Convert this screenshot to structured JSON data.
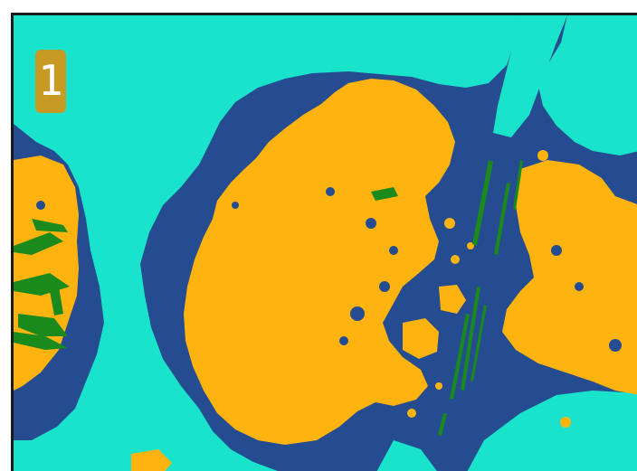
{
  "map": {
    "tile_label": "1",
    "colors": {
      "water": "#254c91",
      "open_ground": "#19e4cb",
      "vegetation": "#ffb30f",
      "linear_feature": "#1a8a1c",
      "frame": "#1a1a1a",
      "badge": "#c79a25"
    }
  }
}
